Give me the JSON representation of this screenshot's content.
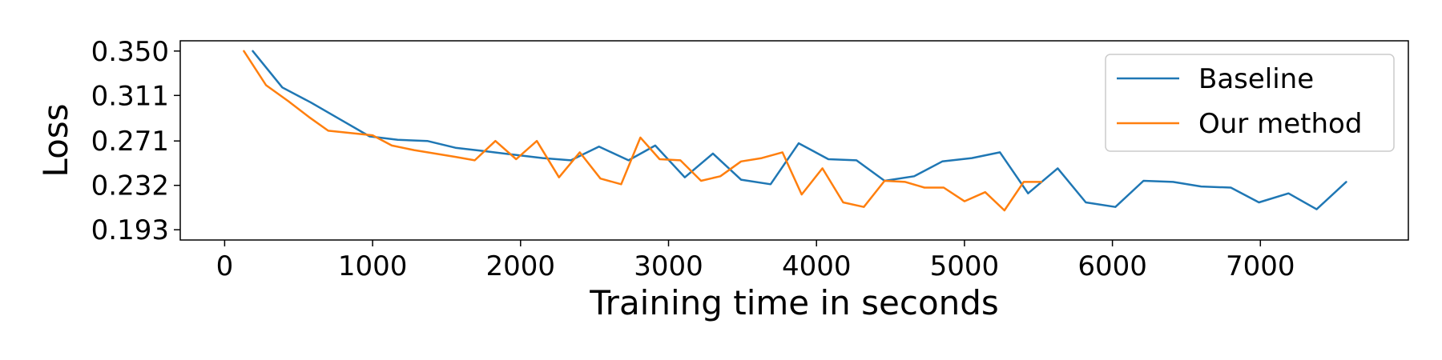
{
  "chart_data": {
    "type": "line",
    "title": "",
    "xlabel": "Training time in seconds",
    "ylabel": "Loss",
    "xlim": [
      -300,
      8000
    ],
    "ylim": [
      0.184,
      0.359
    ],
    "xticks": [
      0,
      1000,
      2000,
      3000,
      4000,
      5000,
      6000,
      7000
    ],
    "xtick_labels": [
      "0",
      "1000",
      "2000",
      "3000",
      "4000",
      "5000",
      "6000",
      "7000"
    ],
    "yticks": [
      0.193,
      0.232,
      0.271,
      0.311,
      0.35
    ],
    "ytick_labels": [
      "0.193",
      "0.232",
      "0.271",
      "0.311",
      "0.350"
    ],
    "grid": false,
    "legend_position": "top-right",
    "series": [
      {
        "name": "Baseline",
        "color": "#1f77b4",
        "x": [
          190,
          390,
          580,
          780,
          980,
          1170,
          1370,
          1560,
          1760,
          1950,
          2150,
          2340,
          2530,
          2730,
          2910,
          3110,
          3300,
          3490,
          3690,
          3880,
          4080,
          4270,
          4460,
          4660,
          4850,
          5050,
          5240,
          5430,
          5630,
          5820,
          6020,
          6210,
          6410,
          6600,
          6800,
          6990,
          7190,
          7380,
          7580
        ],
        "y": [
          0.35,
          0.318,
          0.305,
          0.29,
          0.275,
          0.272,
          0.271,
          0.265,
          0.262,
          0.259,
          0.256,
          0.254,
          0.266,
          0.254,
          0.267,
          0.239,
          0.26,
          0.237,
          0.233,
          0.269,
          0.255,
          0.254,
          0.236,
          0.24,
          0.253,
          0.256,
          0.261,
          0.225,
          0.247,
          0.217,
          0.213,
          0.236,
          0.235,
          0.231,
          0.23,
          0.217,
          0.225,
          0.211,
          0.235
        ]
      },
      {
        "name": "Our method",
        "color": "#ff7f0e",
        "x": [
          130,
          280,
          430,
          570,
          700,
          850,
          1000,
          1130,
          1280,
          1420,
          1560,
          1690,
          1830,
          1970,
          2110,
          2260,
          2400,
          2540,
          2680,
          2810,
          2940,
          3080,
          3220,
          3350,
          3490,
          3630,
          3770,
          3900,
          4040,
          4180,
          4320,
          4460,
          4600,
          4730,
          4860,
          5000,
          5140,
          5270,
          5400,
          5520
        ],
        "y": [
          0.35,
          0.32,
          0.306,
          0.292,
          0.28,
          0.278,
          0.276,
          0.267,
          0.263,
          0.26,
          0.257,
          0.254,
          0.271,
          0.255,
          0.271,
          0.239,
          0.261,
          0.238,
          0.233,
          0.274,
          0.255,
          0.254,
          0.236,
          0.24,
          0.253,
          0.256,
          0.261,
          0.224,
          0.247,
          0.217,
          0.213,
          0.236,
          0.235,
          0.23,
          0.23,
          0.218,
          0.226,
          0.21,
          0.235,
          0.235
        ]
      }
    ]
  }
}
